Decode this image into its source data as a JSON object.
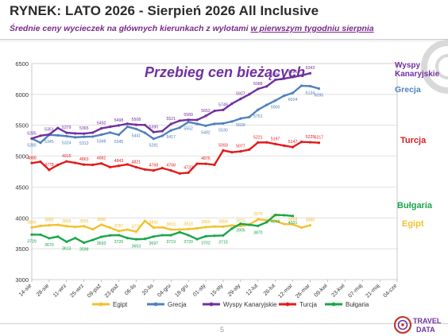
{
  "header": {
    "title": "RYNEK: LATO 2026 - Sierpień 2026 All Inclusive",
    "subtitle_main": "Średnie ceny wycieczek na głównych kierunkach z wylotami ",
    "subtitle_underlined": "w pierwszym tygodniu sierpnia"
  },
  "footer": {
    "page_number": "5"
  },
  "logo": {
    "word1": "TRAVEL",
    "word2": "DATA"
  },
  "colors": {
    "Egipt": "#f2c12e",
    "Grecja": "#4f81bd",
    "Wyspy Kanaryjskie": "#7030a0",
    "Turcja": "#e31a1a",
    "Bułgaria": "#1aa64b",
    "accent": "#7030a0",
    "brand_red": "#c0392b"
  },
  "chart_data": {
    "type": "line",
    "title": "Przebieg cen bieżących",
    "ylim": [
      3000,
      6500
    ],
    "yticks": [
      3000,
      3500,
      4000,
      4500,
      5000,
      5500,
      6000,
      6500
    ],
    "grid": true,
    "legend_placement": "bottom",
    "x_tick_labels": [
      "14-sie",
      "28-sie",
      "11-wrz",
      "25-wrz",
      "09-paź",
      "23-paź",
      "06-lis",
      "20-lis",
      "04-gru",
      "18-gru",
      "01-sty",
      "15-sty",
      "29-sty",
      "12-lut",
      "26-lut",
      "12-mar",
      "26-mar",
      "09-kwi",
      "23-kwi",
      "07-maj",
      "21-maj",
      "04-cze"
    ],
    "series_labels": [
      {
        "series": "Wyspy Kanaryjskie",
        "lines": [
          "Wyspy",
          "Kanaryjskie"
        ]
      },
      {
        "series": "Grecja",
        "lines": [
          "Grecja"
        ]
      },
      {
        "series": "Turcja",
        "lines": [
          "Turcja"
        ]
      },
      {
        "series": "Bułgaria",
        "lines": [
          "Bułgaria"
        ]
      },
      {
        "series": "Egipt",
        "lines": [
          "Egipt"
        ]
      }
    ],
    "series": [
      {
        "name": "Wyspy Kanaryjskie",
        "values": [
          5285,
          5331,
          5351,
          5456,
          5379,
          5368,
          5365,
          5381,
          5450,
          5475,
          5498,
          5525,
          5508,
          5505,
          5390,
          5405,
          5521,
          5574,
          5589,
          5586,
          5652,
          5733,
          5749,
          5849,
          5927,
          6001,
          6088,
          6130,
          6236,
          6256,
          6281,
          6307,
          6343
        ],
        "end_label": "6343"
      },
      {
        "name": "Grecja",
        "values": [
          5285,
          5217,
          5345,
          5337,
          5324,
          5305,
          5313,
          5317,
          5348,
          5382,
          5345,
          5476,
          5441,
          5379,
          5281,
          5329,
          5417,
          5461,
          5552,
          5524,
          5492,
          5524,
          5530,
          5561,
          5609,
          5633,
          5751,
          5830,
          5900,
          5978,
          6024,
          6140,
          6134,
          6095
        ],
        "end_label": "6095"
      },
      {
        "name": "Turcja",
        "values": [
          4888,
          4910,
          4778,
          4858,
          4915,
          4891,
          4863,
          4859,
          4882,
          4822,
          4843,
          4866,
          4821,
          4784,
          4768,
          4806,
          4768,
          4720,
          4732,
          4878,
          4876,
          4860,
          5093,
          5063,
          5077,
          5105,
          5221,
          5223,
          5197,
          5170,
          5147,
          5231,
          5225,
          5217
        ],
        "end_label": "5217"
      },
      {
        "name": "Bułgaria",
        "values": [
          3729,
          3728,
          3670,
          3696,
          3613,
          3673,
          3598,
          3642,
          3693,
          3716,
          3720,
          3673,
          3653,
          3659,
          3697,
          3720,
          3719,
          3768,
          3720,
          3655,
          3702,
          3710,
          3715,
          3826,
          3905,
          3888,
          3870,
          3930,
          4048,
          4043,
          4031
        ],
        "end_label": "4031"
      },
      {
        "name": "Egipt",
        "values": [
          3845,
          3870,
          3880,
          3887,
          3865,
          3855,
          3865,
          3815,
          3890,
          3842,
          3787,
          3810,
          3776,
          3951,
          3842,
          3847,
          3810,
          3812,
          3818,
          3830,
          3850,
          3860,
          3858,
          3877,
          3870,
          3890,
          3975,
          3962,
          3950,
          3900,
          3894,
          3843,
          3880
        ],
        "end_label": "3880"
      }
    ]
  }
}
